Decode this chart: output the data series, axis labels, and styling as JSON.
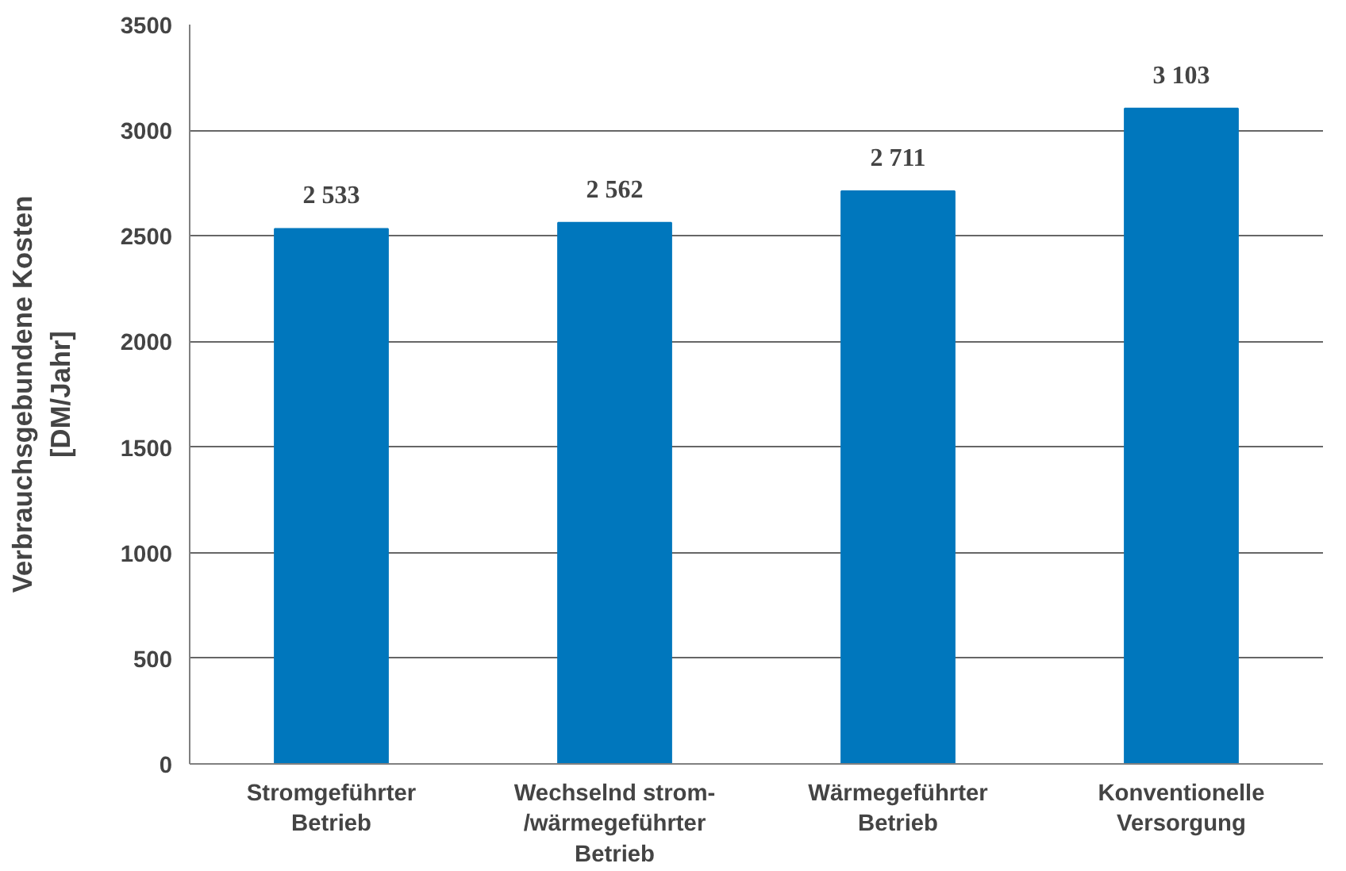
{
  "chart_data": {
    "type": "bar",
    "ylabel": "Verbrauchsgebundene Kosten\n[DM/Jahr]",
    "categories": [
      "Stromgeführter\nBetrieb",
      "Wechselnd strom-\n/wärmegeführter\nBetrieb",
      "Wärmegeführter\nBetrieb",
      "Konventionelle\nVersorgung"
    ],
    "values": [
      2533,
      2562,
      2711,
      3103
    ],
    "value_labels": [
      "2 533",
      "2 562",
      "2 711",
      "3 103"
    ],
    "color": "#0077bd",
    "ylim": [
      0,
      3500
    ],
    "yticks": [
      0,
      500,
      1000,
      1500,
      2000,
      2500,
      3000,
      3500
    ],
    "grid": "y"
  }
}
